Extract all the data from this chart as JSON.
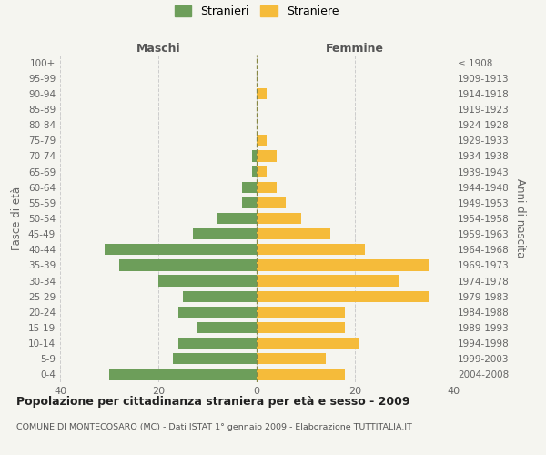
{
  "age_groups": [
    "0-4",
    "5-9",
    "10-14",
    "15-19",
    "20-24",
    "25-29",
    "30-34",
    "35-39",
    "40-44",
    "45-49",
    "50-54",
    "55-59",
    "60-64",
    "65-69",
    "70-74",
    "75-79",
    "80-84",
    "85-89",
    "90-94",
    "95-99",
    "100+"
  ],
  "birth_years": [
    "2004-2008",
    "1999-2003",
    "1994-1998",
    "1989-1993",
    "1984-1988",
    "1979-1983",
    "1974-1978",
    "1969-1973",
    "1964-1968",
    "1959-1963",
    "1954-1958",
    "1949-1953",
    "1944-1948",
    "1939-1943",
    "1934-1938",
    "1929-1933",
    "1924-1928",
    "1919-1923",
    "1914-1918",
    "1909-1913",
    "≤ 1908"
  ],
  "maschi": [
    30,
    17,
    16,
    12,
    16,
    15,
    20,
    28,
    31,
    13,
    8,
    3,
    3,
    1,
    1,
    0,
    0,
    0,
    0,
    0,
    0
  ],
  "femmine": [
    18,
    14,
    21,
    18,
    18,
    35,
    29,
    35,
    22,
    15,
    9,
    6,
    4,
    2,
    4,
    2,
    0,
    0,
    2,
    0,
    0
  ],
  "male_color": "#6d9e5a",
  "female_color": "#f5bb3a",
  "background_color": "#f5f5f0",
  "grid_color": "#cccccc",
  "title": "Popolazione per cittadinanza straniera per età e sesso - 2009",
  "subtitle": "COMUNE DI MONTECOSARO (MC) - Dati ISTAT 1° gennaio 2009 - Elaborazione TUTTITALIA.IT",
  "xlabel_left": "Maschi",
  "xlabel_right": "Femmine",
  "ylabel_left": "Fasce di età",
  "ylabel_right": "Anni di nascita",
  "legend_stranieri": "Stranieri",
  "legend_straniere": "Straniere",
  "xlim": 40
}
